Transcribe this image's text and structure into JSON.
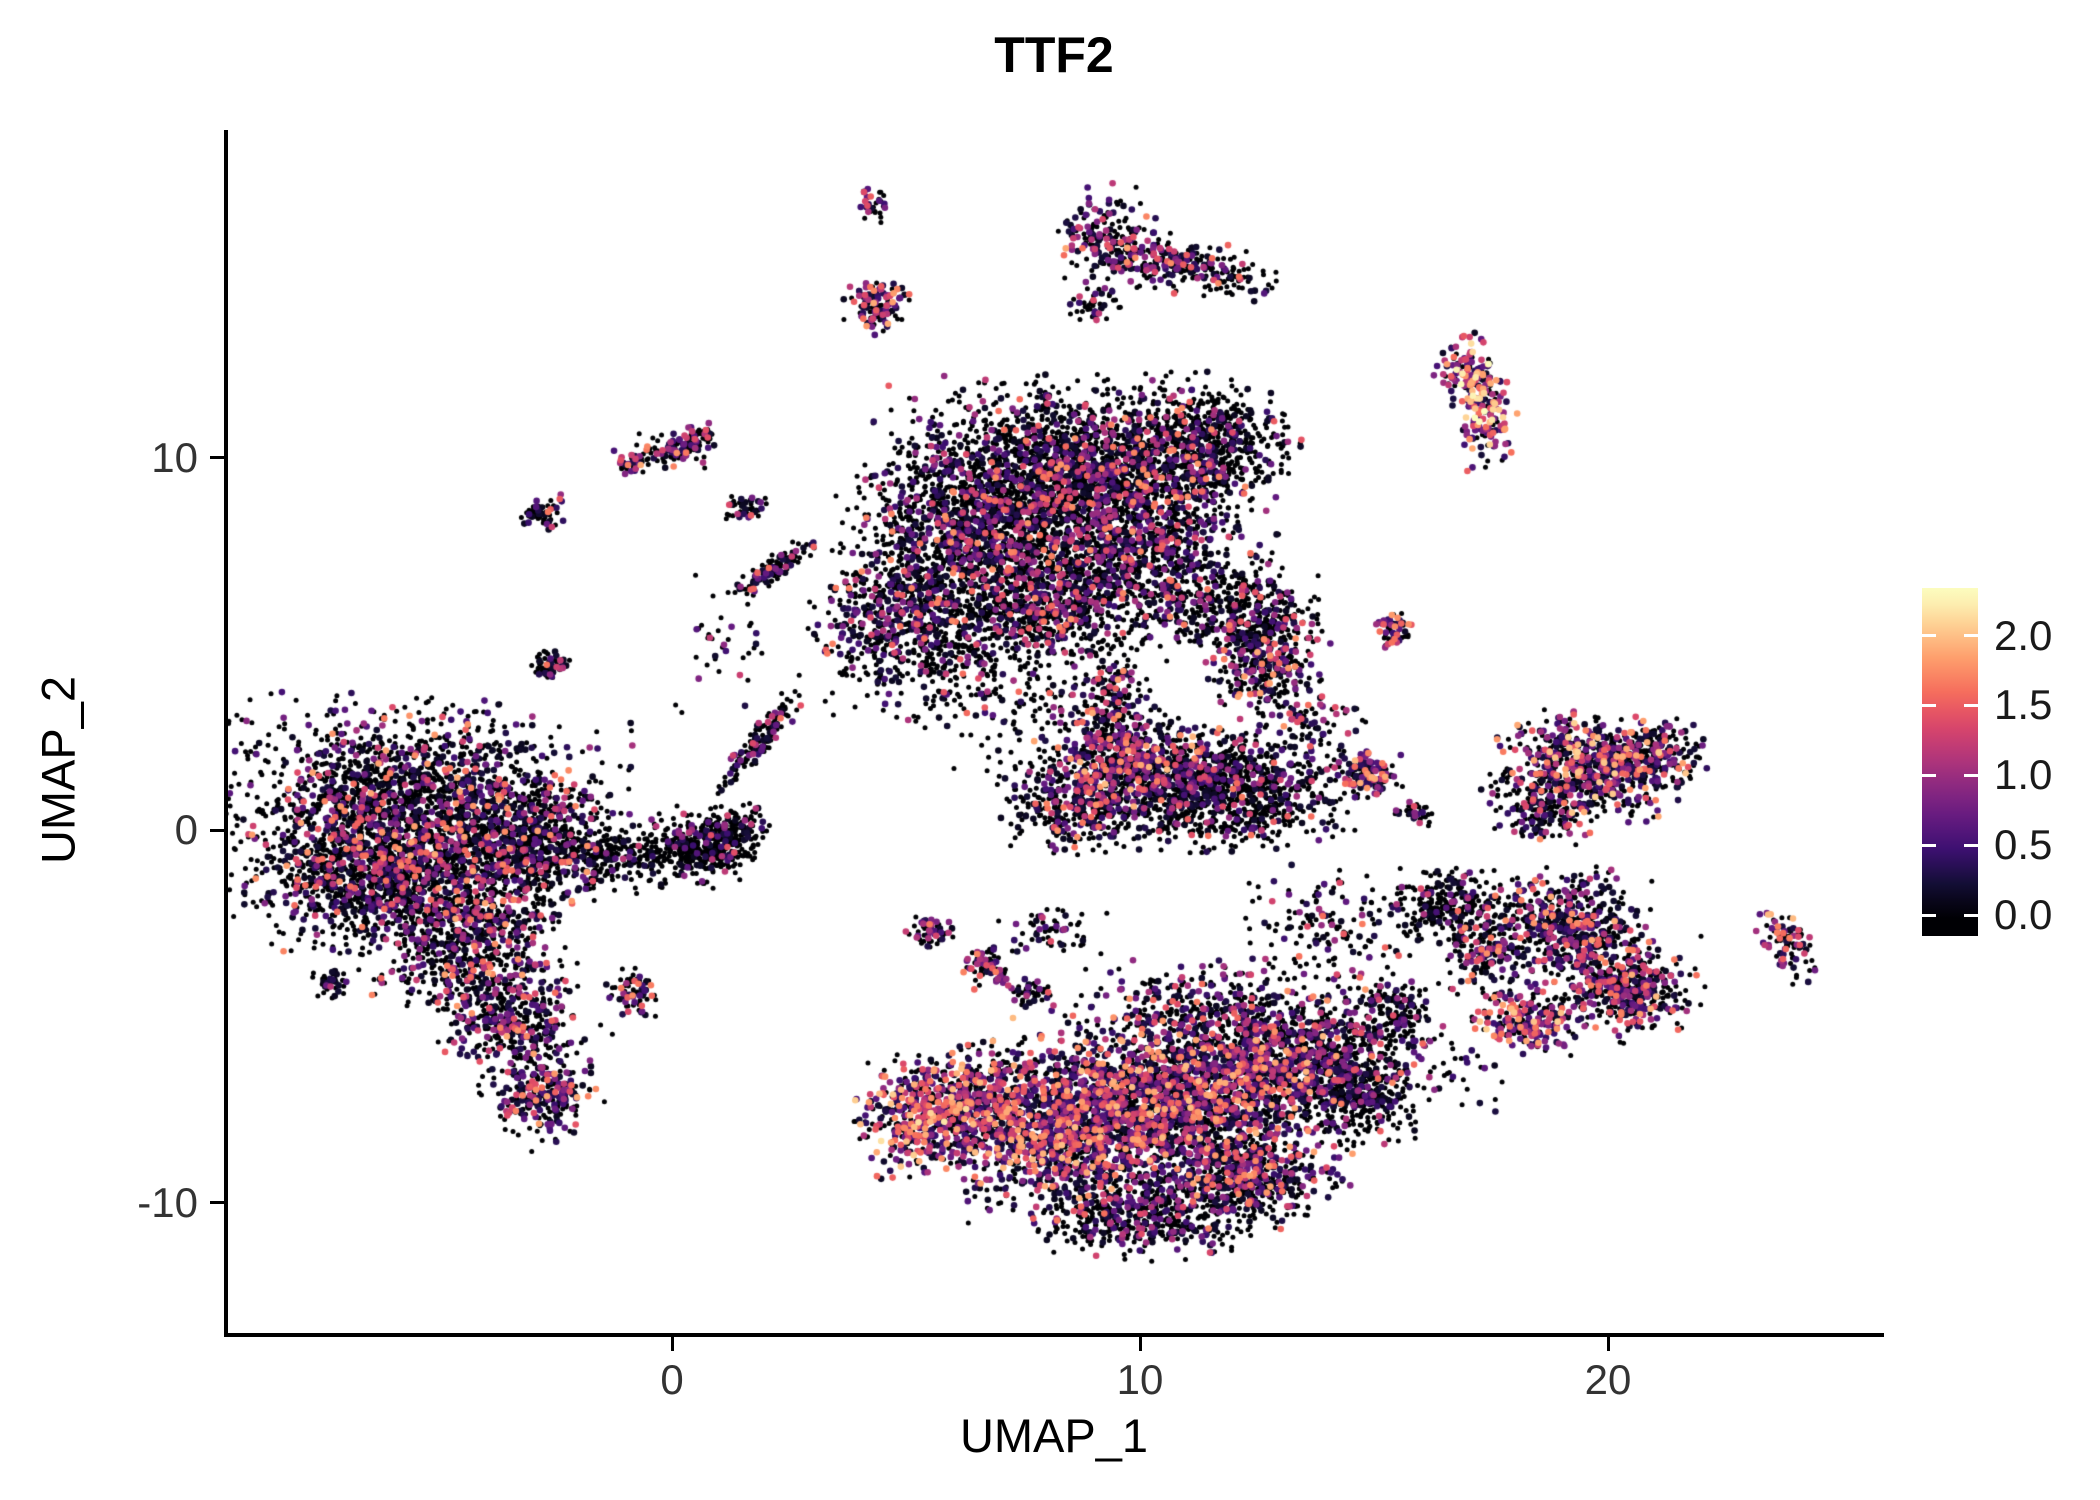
{
  "chart_data": {
    "type": "scatter",
    "title": "TTF2",
    "xlabel": "UMAP_1",
    "ylabel": "UMAP_2",
    "x_ticks": [
      0,
      10,
      20
    ],
    "y_ticks": [
      -10,
      0,
      10
    ],
    "xlim": [
      -9.5,
      25.8
    ],
    "ylim": [
      -13.5,
      19.1
    ],
    "grid": false,
    "background": "#ffffff",
    "legend": {
      "position": "right",
      "ticks": [
        "2.0",
        "1.5",
        "1.0",
        "0.5",
        "0.0"
      ],
      "tick_values": [
        2.0,
        1.5,
        1.0,
        0.5,
        0.0
      ],
      "bar_value_range": [
        -0.15,
        2.34
      ],
      "expression_max": 2.3,
      "colormap": "magma",
      "colormap_stops": [
        "#000004",
        "#140e36",
        "#3b0f70",
        "#641a80",
        "#8c2981",
        "#b73779",
        "#de4968",
        "#f7705c",
        "#fe9f6d",
        "#fecf92",
        "#fcfdbf"
      ]
    },
    "seed": 42,
    "point_radius_zero": 2.5,
    "point_radius_expr": 3.3,
    "cluster_fields": [
      "center_x",
      "center_y",
      "sd_x",
      "sd_y",
      "rot_deg",
      "n_cells",
      "expressing_fraction",
      "expr_max",
      "expr_skew_pow"
    ],
    "clusters": [
      [
        -5.4,
        0.5,
        1.85,
        1.25,
        -5,
        2200,
        0.32,
        1.9,
        2.2
      ],
      [
        -6.0,
        -1.4,
        1.4,
        0.8,
        0,
        1000,
        0.3,
        1.8,
        2.2
      ],
      [
        -4.4,
        -3.0,
        1.0,
        0.9,
        20,
        650,
        0.38,
        1.9,
        2.0
      ],
      [
        -3.4,
        -5.2,
        0.65,
        0.8,
        40,
        420,
        0.42,
        1.9,
        2.0
      ],
      [
        -2.7,
        -7.2,
        0.5,
        0.45,
        45,
        230,
        0.5,
        1.9,
        1.8
      ],
      [
        -7.3,
        -4.1,
        0.2,
        0.18,
        0,
        45,
        0.3,
        1.2,
        2.0
      ],
      [
        -3.0,
        -0.5,
        0.8,
        0.8,
        0,
        450,
        0.3,
        1.8,
        2.2
      ],
      [
        -1.6,
        -0.8,
        0.7,
        0.35,
        -10,
        140,
        0.22,
        1.4,
        2.0
      ],
      [
        0.5,
        -0.45,
        0.55,
        0.45,
        0,
        330,
        0.15,
        1.5,
        2.4
      ],
      [
        1.3,
        -0.1,
        0.35,
        0.35,
        0,
        160,
        0.2,
        1.5,
        2.2
      ],
      [
        -0.8,
        -4.4,
        0.25,
        0.3,
        0,
        70,
        0.5,
        1.8,
        1.8
      ],
      [
        8.6,
        9.6,
        1.8,
        1.05,
        0,
        2300,
        0.3,
        1.8,
        2.4
      ],
      [
        6.4,
        7.7,
        1.2,
        1.1,
        0,
        1250,
        0.3,
        1.8,
        2.4
      ],
      [
        9.9,
        7.1,
        1.2,
        0.95,
        0,
        950,
        0.33,
        1.8,
        2.2
      ],
      [
        4.8,
        5.7,
        0.85,
        0.85,
        0,
        480,
        0.38,
        1.8,
        2.2
      ],
      [
        6.6,
        4.7,
        1.4,
        0.7,
        10,
        330,
        0.25,
        1.6,
        2.2
      ],
      [
        11.4,
        10.5,
        0.8,
        0.7,
        -20,
        480,
        0.3,
        1.8,
        2.2
      ],
      [
        7.9,
        5.9,
        0.8,
        0.6,
        0,
        380,
        0.3,
        1.6,
        2.2
      ],
      [
        2.2,
        7.0,
        0.55,
        0.14,
        40,
        120,
        0.4,
        1.7,
        2.0
      ],
      [
        1.6,
        8.6,
        0.2,
        0.15,
        0,
        45,
        0.4,
        1.5,
        2.0
      ],
      [
        0.0,
        10.2,
        0.35,
        0.22,
        0,
        90,
        0.4,
        1.8,
        2.0
      ],
      [
        0.6,
        10.6,
        0.2,
        0.15,
        0,
        40,
        0.4,
        1.6,
        2.0
      ],
      [
        -0.9,
        9.9,
        0.16,
        0.14,
        0,
        40,
        0.5,
        1.9,
        1.6
      ],
      [
        -2.6,
        4.4,
        0.18,
        0.2,
        0,
        55,
        0.45,
        1.8,
        1.8
      ],
      [
        -2.7,
        8.5,
        0.22,
        0.18,
        30,
        60,
        0.4,
        1.8,
        2.0
      ],
      [
        4.4,
        14.1,
        0.3,
        0.35,
        0,
        120,
        0.55,
        2.0,
        1.6
      ],
      [
        4.3,
        16.8,
        0.15,
        0.2,
        0,
        35,
        0.4,
        1.6,
        2.0
      ],
      [
        9.3,
        15.9,
        0.5,
        0.65,
        20,
        170,
        0.5,
        1.9,
        1.8
      ],
      [
        10.4,
        15.3,
        0.75,
        0.35,
        -15,
        200,
        0.45,
        1.9,
        1.8
      ],
      [
        11.8,
        14.9,
        0.5,
        0.28,
        -10,
        80,
        0.4,
        1.8,
        2.0
      ],
      [
        9.0,
        14.1,
        0.25,
        0.2,
        0,
        45,
        0.4,
        1.6,
        2.0
      ],
      [
        17.0,
        12.3,
        0.33,
        0.45,
        10,
        130,
        0.8,
        2.3,
        1.3
      ],
      [
        17.4,
        11.0,
        0.3,
        0.55,
        0,
        120,
        0.85,
        2.4,
        1.2
      ],
      [
        12.2,
        5.7,
        0.75,
        0.6,
        0,
        430,
        0.3,
        1.7,
        2.2
      ],
      [
        12.7,
        4.3,
        0.55,
        0.5,
        0,
        260,
        0.42,
        1.9,
        1.8
      ],
      [
        11.6,
        1.1,
        1.3,
        0.7,
        0,
        1200,
        0.25,
        1.7,
        2.4
      ],
      [
        9.7,
        1.9,
        0.9,
        0.6,
        0,
        480,
        0.55,
        2.0,
        1.7
      ],
      [
        8.7,
        0.6,
        0.7,
        0.55,
        0,
        330,
        0.4,
        1.8,
        2.0
      ],
      [
        9.4,
        3.3,
        0.3,
        0.8,
        0,
        190,
        0.5,
        1.9,
        1.8
      ],
      [
        15.5,
        5.4,
        0.22,
        0.25,
        0,
        55,
        0.6,
        1.9,
        1.5
      ],
      [
        14.9,
        1.5,
        0.3,
        0.3,
        0,
        130,
        0.6,
        2.0,
        1.6
      ],
      [
        19.6,
        1.7,
        0.9,
        0.6,
        -10,
        650,
        0.5,
        2.1,
        1.8
      ],
      [
        20.9,
        2.1,
        0.5,
        0.4,
        0,
        230,
        0.45,
        1.9,
        1.8
      ],
      [
        18.6,
        0.6,
        0.5,
        0.4,
        0,
        190,
        0.4,
        1.8,
        2.0
      ],
      [
        23.8,
        -3.0,
        0.22,
        0.5,
        15,
        90,
        0.6,
        2.0,
        1.5
      ],
      [
        19.1,
        -2.6,
        0.8,
        0.7,
        0,
        550,
        0.42,
        1.9,
        2.0
      ],
      [
        20.4,
        -4.3,
        0.7,
        0.6,
        0,
        420,
        0.48,
        2.0,
        1.8
      ],
      [
        18.3,
        -5.1,
        0.5,
        0.45,
        0,
        230,
        0.6,
        2.1,
        1.5
      ],
      [
        17.3,
        -3.3,
        0.4,
        0.5,
        0,
        140,
        0.4,
        1.8,
        2.0
      ],
      [
        16.6,
        -2.0,
        0.5,
        0.4,
        0,
        260,
        0.25,
        1.6,
        2.4
      ],
      [
        15.9,
        0.4,
        0.2,
        0.15,
        0,
        35,
        0.3,
        1.4,
        2.0
      ],
      [
        10.8,
        -7.2,
        1.6,
        1.05,
        -5,
        2000,
        0.55,
        2.0,
        1.9
      ],
      [
        8.4,
        -8.3,
        1.05,
        0.85,
        10,
        900,
        0.6,
        2.0,
        1.8
      ],
      [
        13.3,
        -6.0,
        1.05,
        0.75,
        0,
        750,
        0.45,
        1.9,
        2.0
      ],
      [
        14.7,
        -7.0,
        0.6,
        0.65,
        0,
        380,
        0.25,
        1.6,
        2.4
      ],
      [
        10.1,
        -10.3,
        1.05,
        0.55,
        5,
        550,
        0.3,
        1.7,
        2.2
      ],
      [
        12.3,
        -9.3,
        0.8,
        0.6,
        -10,
        480,
        0.45,
        1.9,
        2.0
      ],
      [
        6.7,
        -7.2,
        0.7,
        0.7,
        0,
        480,
        0.6,
        2.0,
        1.7
      ],
      [
        11.7,
        -4.7,
        1.2,
        0.5,
        0,
        280,
        0.4,
        1.8,
        2.0
      ],
      [
        5.3,
        -7.7,
        0.6,
        0.7,
        0,
        430,
        0.62,
        2.2,
        1.4
      ],
      [
        6.7,
        -3.7,
        0.25,
        0.25,
        0,
        85,
        0.5,
        1.8,
        1.8
      ],
      [
        5.5,
        -2.7,
        0.22,
        0.2,
        0,
        65,
        0.45,
        1.7,
        1.8
      ],
      [
        7.7,
        -4.4,
        0.2,
        0.18,
        0,
        50,
        0.4,
        1.6,
        2.0
      ],
      [
        8.1,
        -2.7,
        0.5,
        0.35,
        0,
        60,
        0.3,
        1.5,
        2.2
      ],
      [
        14.3,
        -2.7,
        1.0,
        0.8,
        0,
        170,
        0.35,
        1.7,
        2.2
      ],
      [
        15.4,
        -4.9,
        0.45,
        0.4,
        0,
        150,
        0.3,
        1.6,
        2.2
      ],
      [
        1.9,
        2.4,
        0.14,
        0.8,
        -35,
        130,
        0.3,
        1.6,
        2.2
      ],
      [
        -1.0,
        -0.6,
        1.0,
        0.25,
        -5,
        110,
        0.2,
        1.4,
        2.4
      ],
      [
        7.6,
        3.1,
        1.3,
        0.8,
        0,
        110,
        0.3,
        1.6,
        2.2
      ],
      [
        1.3,
        4.9,
        0.5,
        0.9,
        0,
        40,
        0.3,
        1.5,
        2.2
      ],
      [
        16.4,
        -6.4,
        0.7,
        0.5,
        0,
        45,
        0.35,
        1.6,
        2.0
      ],
      [
        13.6,
        2.9,
        0.6,
        0.4,
        0,
        70,
        0.4,
        1.8,
        2.0
      ]
    ]
  }
}
